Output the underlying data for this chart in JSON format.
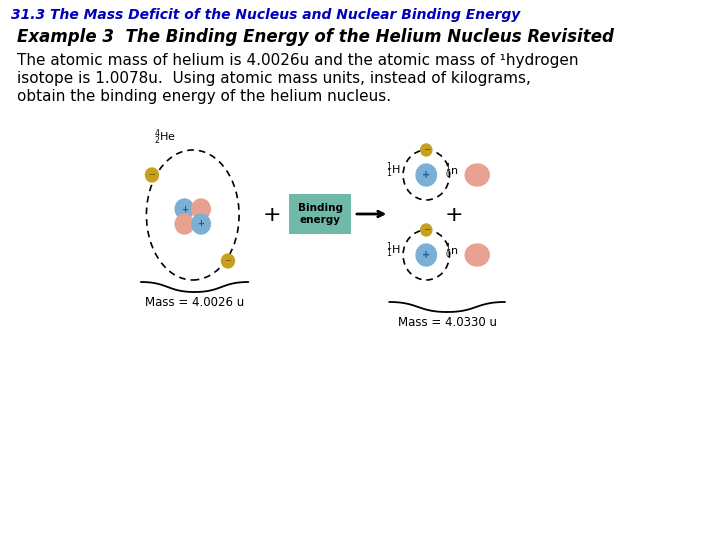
{
  "header": "31.3 The Mass Deficit of the Nucleus and Nuclear Binding Energy",
  "header_color": "#0000BB",
  "header_fontsize": 10,
  "example_title": "Example 3  The Binding Energy of the Helium Nucleus Revisited",
  "example_fontsize": 12,
  "body_line1": "The atomic mass of helium is 4.0026u and the atomic mass of ¹hydrogen",
  "body_line2": "isotope is 1.0078u.  Using atomic mass units, instead of kilograms,",
  "body_line3": "obtain the binding energy of the helium nucleus.",
  "body_fontsize": 11,
  "mass_left": "Mass = 4.0026 u",
  "mass_right": "Mass = 4.0330 u",
  "binding_energy_label": "Binding\nenergy",
  "color_blue_proton": "#7BAFD4",
  "color_pink_neutron": "#E8A090",
  "color_gold_electron": "#C8A020",
  "color_binding_box": "#70B8A8",
  "background_color": "#FFFFFF"
}
